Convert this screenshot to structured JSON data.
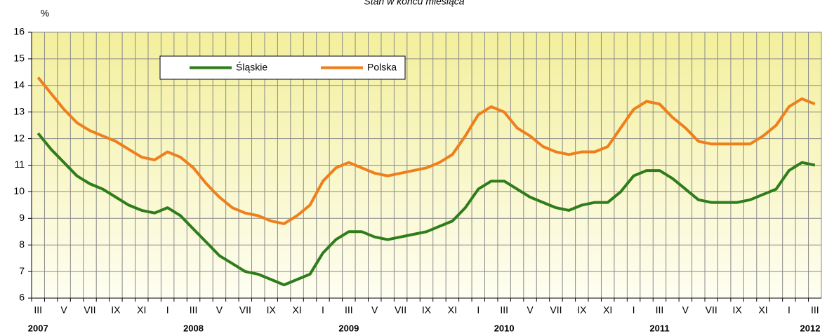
{
  "chart_data": {
    "type": "line",
    "title": "Stan w końcu miesiąca",
    "y_unit": "%",
    "categories": [
      "III",
      null,
      "V",
      null,
      "VII",
      null,
      "IX",
      null,
      "XI",
      null,
      "I",
      null,
      "III",
      null,
      "V",
      null,
      "VII",
      null,
      "IX",
      null,
      "XI",
      null,
      "I",
      null,
      "III",
      null,
      "V",
      null,
      "VII",
      null,
      "IX",
      null,
      "XI",
      null,
      "I",
      null,
      "III",
      null,
      "V",
      null,
      "VII",
      null,
      "IX",
      null,
      "XI",
      null,
      "I",
      null,
      "III",
      null,
      "V",
      null,
      "VII",
      null,
      "IX",
      null,
      "XI",
      null,
      "I",
      null,
      "III"
    ],
    "years": [
      "2007",
      null,
      null,
      null,
      null,
      null,
      null,
      null,
      null,
      null,
      null,
      null,
      "2008",
      null,
      null,
      null,
      null,
      null,
      null,
      null,
      null,
      null,
      null,
      null,
      "2009",
      null,
      null,
      null,
      null,
      null,
      null,
      null,
      null,
      null,
      null,
      null,
      "2010",
      null,
      null,
      null,
      null,
      null,
      null,
      null,
      null,
      null,
      null,
      null,
      "2011",
      null,
      null,
      null,
      null,
      null,
      null,
      null,
      null,
      null,
      null,
      null,
      "2012"
    ],
    "series": [
      {
        "name": "Śląskie",
        "color": "#2e7d1a",
        "values": [
          12.2,
          11.6,
          11.1,
          10.6,
          10.3,
          10.1,
          9.8,
          9.5,
          9.3,
          9.2,
          9.4,
          9.1,
          8.6,
          8.1,
          7.6,
          7.3,
          7.0,
          6.9,
          6.7,
          6.5,
          6.7,
          6.9,
          7.7,
          8.2,
          8.5,
          8.5,
          8.3,
          8.2,
          8.3,
          8.4,
          8.5,
          8.7,
          8.9,
          9.4,
          10.1,
          10.4,
          10.4,
          10.1,
          9.8,
          9.6,
          9.4,
          9.3,
          9.5,
          9.6,
          9.6,
          10.0,
          10.6,
          10.8,
          10.8,
          10.5,
          10.1,
          9.7,
          9.6,
          9.6,
          9.6,
          9.7,
          9.9,
          10.1,
          10.8,
          11.1,
          11.0
        ]
      },
      {
        "name": "Polska",
        "color": "#ee7f1c",
        "values": [
          14.3,
          13.7,
          13.1,
          12.6,
          12.3,
          12.1,
          11.9,
          11.6,
          11.3,
          11.2,
          11.5,
          11.3,
          10.9,
          10.3,
          9.8,
          9.4,
          9.2,
          9.1,
          8.9,
          8.8,
          9.1,
          9.5,
          10.4,
          10.9,
          11.1,
          10.9,
          10.7,
          10.6,
          10.7,
          10.8,
          10.9,
          11.1,
          11.4,
          12.1,
          12.9,
          13.2,
          13.0,
          12.4,
          12.1,
          11.7,
          11.5,
          11.4,
          11.5,
          11.5,
          11.7,
          12.4,
          13.1,
          13.4,
          13.3,
          12.8,
          12.4,
          11.9,
          11.8,
          11.8,
          11.8,
          11.8,
          12.1,
          12.5,
          13.2,
          13.5,
          13.3
        ]
      }
    ],
    "ylim": [
      6,
      16
    ],
    "yticks": [
      6,
      7,
      8,
      9,
      10,
      11,
      12,
      13,
      14,
      15,
      16
    ],
    "grid": true
  }
}
